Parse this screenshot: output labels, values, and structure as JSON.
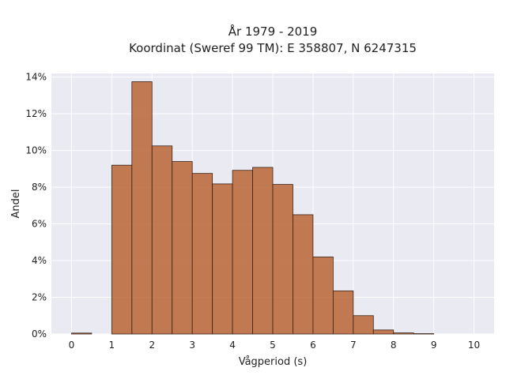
{
  "chart_data": {
    "type": "bar",
    "title_line1": "År 1979 - 2019",
    "title_line2": "Koordinat (Sweref 99 TM): E 358807, N 6247315",
    "xlabel": "Vågperiod (s)",
    "ylabel": "Andel",
    "xlim": [
      -0.5,
      10.5
    ],
    "ylim": [
      0,
      0.142
    ],
    "xticks": [
      0,
      1,
      2,
      3,
      4,
      5,
      6,
      7,
      8,
      9,
      10
    ],
    "xtick_labels": [
      "0",
      "1",
      "2",
      "3",
      "4",
      "5",
      "6",
      "7",
      "8",
      "9",
      "10"
    ],
    "yticks": [
      0,
      0.02,
      0.04,
      0.06,
      0.08,
      0.1,
      0.12,
      0.14
    ],
    "ytick_labels": [
      "0%",
      "2%",
      "4%",
      "6%",
      "8%",
      "10%",
      "12%",
      "14%"
    ],
    "bin_width": 0.5,
    "bins": [
      {
        "start": 0.0,
        "value": 0.0005
      },
      {
        "start": 1.0,
        "value": 0.092
      },
      {
        "start": 1.5,
        "value": 0.1375
      },
      {
        "start": 2.0,
        "value": 0.1025
      },
      {
        "start": 2.5,
        "value": 0.094
      },
      {
        "start": 3.0,
        "value": 0.0875
      },
      {
        "start": 3.5,
        "value": 0.0818
      },
      {
        "start": 4.0,
        "value": 0.0892
      },
      {
        "start": 4.5,
        "value": 0.0908
      },
      {
        "start": 5.0,
        "value": 0.0815
      },
      {
        "start": 5.5,
        "value": 0.065
      },
      {
        "start": 6.0,
        "value": 0.042
      },
      {
        "start": 6.5,
        "value": 0.0235
      },
      {
        "start": 7.0,
        "value": 0.01
      },
      {
        "start": 7.5,
        "value": 0.0022
      },
      {
        "start": 8.0,
        "value": 0.0006
      },
      {
        "start": 8.5,
        "value": 0.0002
      }
    ],
    "grid": true,
    "colors": {
      "bar": "#b86535",
      "edge": "#3a2418",
      "plot_bg": "#eaeaf2"
    }
  }
}
